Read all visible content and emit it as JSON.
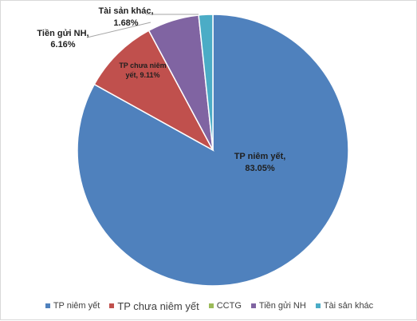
{
  "chart_data": {
    "type": "pie",
    "title": "",
    "slices": [
      {
        "name": "TP niêm yết",
        "value": 83.05,
        "color": "#4f81bd",
        "label_lines": [
          "TP niêm yết,",
          "83.05%"
        ]
      },
      {
        "name": "TP chưa niêm yết",
        "value": 9.11,
        "color": "#c0504d",
        "label_lines": [
          "TP chưa niêm",
          "yết, 9.11%"
        ]
      },
      {
        "name": "CCTG",
        "value": 0.0,
        "color": "#9bbb59",
        "label_lines": []
      },
      {
        "name": "Tiền gửi NH",
        "value": 6.16,
        "color": "#8064a2",
        "label_lines": [
          "Tiền gửi NH,",
          "6.16%"
        ]
      },
      {
        "name": "Tài sản khác",
        "value": 1.68,
        "color": "#4bacc6",
        "label_lines": [
          "Tài sản khác,",
          "1.68%"
        ]
      }
    ],
    "legend_position": "bottom"
  },
  "legend": {
    "items": [
      {
        "label": "TP niêm yết",
        "color": "#4f81bd"
      },
      {
        "label": "TP chưa niêm yết",
        "color": "#c0504d"
      },
      {
        "label": "CCTG",
        "color": "#9bbb59"
      },
      {
        "label": "Tiền gửi NH",
        "color": "#8064a2"
      },
      {
        "label": "Tài sản khác",
        "color": "#4bacc6"
      }
    ]
  }
}
